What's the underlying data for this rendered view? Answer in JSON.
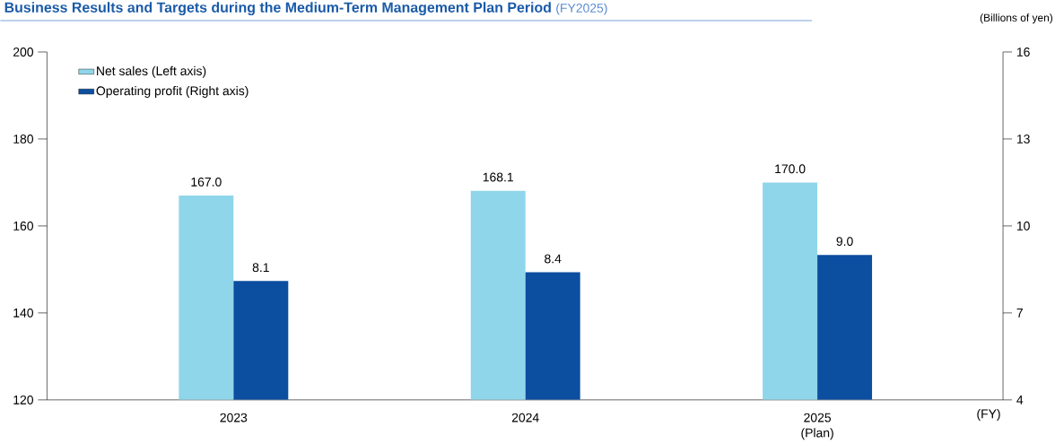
{
  "chart_data": {
    "type": "bar",
    "title": "Business Results and Targets during the Medium-Term Management Plan Period",
    "subtitle": "(FY2025)",
    "xlabel": "(FY)",
    "y2label": "(Billions of yen)",
    "categories": [
      "2023",
      "2024",
      "2025 (Plan)"
    ],
    "series": [
      {
        "name": "Net sales (Left axis)",
        "color": "#8fd6ea",
        "values": [
          167.0,
          168.1,
          170.0
        ],
        "value_labels": [
          "167.0",
          "168.1",
          "170.0"
        ]
      },
      {
        "name": "Operating profit (Right axis)",
        "color": "#0c4ea0",
        "values": [
          8.1,
          8.4,
          9.0
        ],
        "value_labels": [
          "8.1",
          "8.4",
          "9.0"
        ],
        "axis": "y2"
      }
    ],
    "ylim": [
      120,
      200
    ],
    "yticks": [
      120,
      140,
      160,
      180,
      200
    ],
    "y2lim": [
      4,
      16
    ],
    "y2ticks": [
      4,
      7,
      10,
      13,
      16
    ],
    "legend": "top left",
    "grid": false
  }
}
